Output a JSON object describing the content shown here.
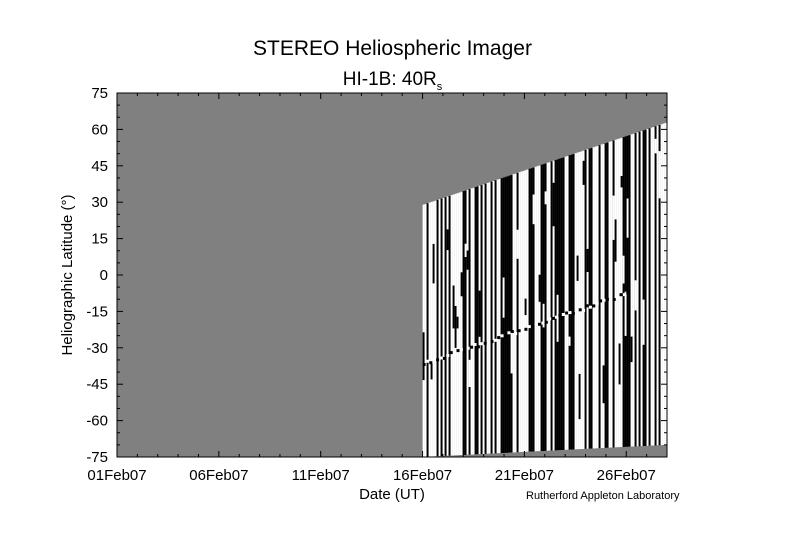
{
  "chart_data": {
    "type": "heatmap",
    "title": "STEREO Heliospheric Imager",
    "subtitle_main": "HI-1B: 40R",
    "subtitle_sub": "s",
    "xlabel": "Date (UT)",
    "ylabel": "Heliographic Latitude (°)",
    "x_ticks": [
      "01Feb07",
      "06Feb07",
      "11Feb07",
      "16Feb07",
      "21Feb07",
      "26Feb07"
    ],
    "y_ticks": [
      "75",
      "60",
      "45",
      "30",
      "15",
      "0",
      "-15",
      "-30",
      "-45",
      "-60",
      "-75"
    ],
    "xlim": [
      "2007-02-01",
      "2007-02-28"
    ],
    "ylim": [
      -75,
      75
    ],
    "data_start_date": "2007-02-16",
    "coverage_top_start_deg": 29,
    "coverage_top_end_deg": 63,
    "coverage_bottom_end_deg": -70,
    "feature_track_start": {
      "date": "2007-02-16",
      "lat": -36
    },
    "feature_track_end": {
      "date": "2007-02-26",
      "lat": -7
    },
    "colors": {
      "no_data": "#808080",
      "bright": "#ffffff",
      "dark": "#000000"
    },
    "credit": "Rutherford Appleton Laboratory"
  }
}
